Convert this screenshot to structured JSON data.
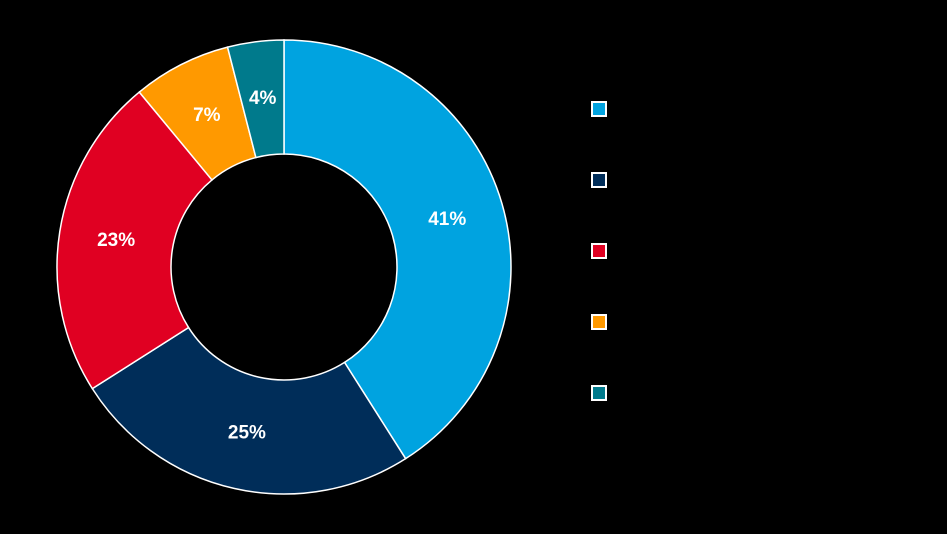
{
  "chart_data": {
    "type": "pie",
    "variant": "donut",
    "title": "",
    "start_angle": "12 o'clock",
    "direction": "clockwise",
    "series": [
      {
        "name": "",
        "value": 41,
        "label": "41%",
        "color": "#00A3E0"
      },
      {
        "name": "",
        "value": 25,
        "label": "25%",
        "color": "#002D59"
      },
      {
        "name": "",
        "value": 23,
        "label": "23%",
        "color": "#E00022"
      },
      {
        "name": "",
        "value": 7,
        "label": "7%",
        "color": "#FF9900"
      },
      {
        "name": "",
        "value": 4,
        "label": "4%",
        "color": "#007A8C"
      }
    ],
    "values": [
      41,
      25,
      23,
      7,
      4
    ],
    "labels": [
      "41%",
      "25%",
      "23%",
      "7%",
      "4%"
    ],
    "legend_position": "right",
    "legend_entries": [
      "",
      "",
      "",
      "",
      ""
    ]
  },
  "colors": {
    "background": "#000000",
    "slice_border": "#ffffff",
    "label_text": "#ffffff"
  }
}
